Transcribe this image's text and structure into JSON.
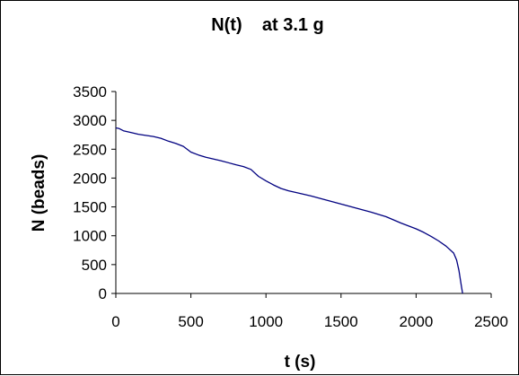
{
  "chart_data": {
    "type": "line",
    "title": "N(t)    at 3.1 g",
    "xlabel": "t (s)",
    "ylabel": "N (beads)",
    "xlim": [
      0,
      2500
    ],
    "ylim": [
      0,
      3500
    ],
    "xticks": [
      "0",
      "500",
      "1000",
      "1500",
      "2000",
      "2500"
    ],
    "yticks": [
      "0",
      "500",
      "1000",
      "1500",
      "2000",
      "2500",
      "3000",
      "3500"
    ],
    "grid": false,
    "legend": "none",
    "series": [
      {
        "color": "#000080",
        "x": [
          0,
          20,
          50,
          100,
          150,
          200,
          250,
          300,
          350,
          400,
          450,
          500,
          550,
          600,
          700,
          800,
          850,
          900,
          950,
          1000,
          1050,
          1100,
          1150,
          1200,
          1300,
          1400,
          1500,
          1600,
          1700,
          1800,
          1900,
          2000,
          2050,
          2100,
          2150,
          2200,
          2250,
          2270,
          2285,
          2300,
          2310
        ],
        "y": [
          2870,
          2860,
          2820,
          2790,
          2760,
          2740,
          2720,
          2690,
          2640,
          2600,
          2550,
          2450,
          2400,
          2360,
          2300,
          2230,
          2200,
          2150,
          2030,
          1950,
          1880,
          1820,
          1780,
          1750,
          1690,
          1620,
          1550,
          1480,
          1410,
          1330,
          1220,
          1120,
          1060,
          990,
          910,
          820,
          700,
          580,
          400,
          150,
          0
        ]
      }
    ]
  }
}
